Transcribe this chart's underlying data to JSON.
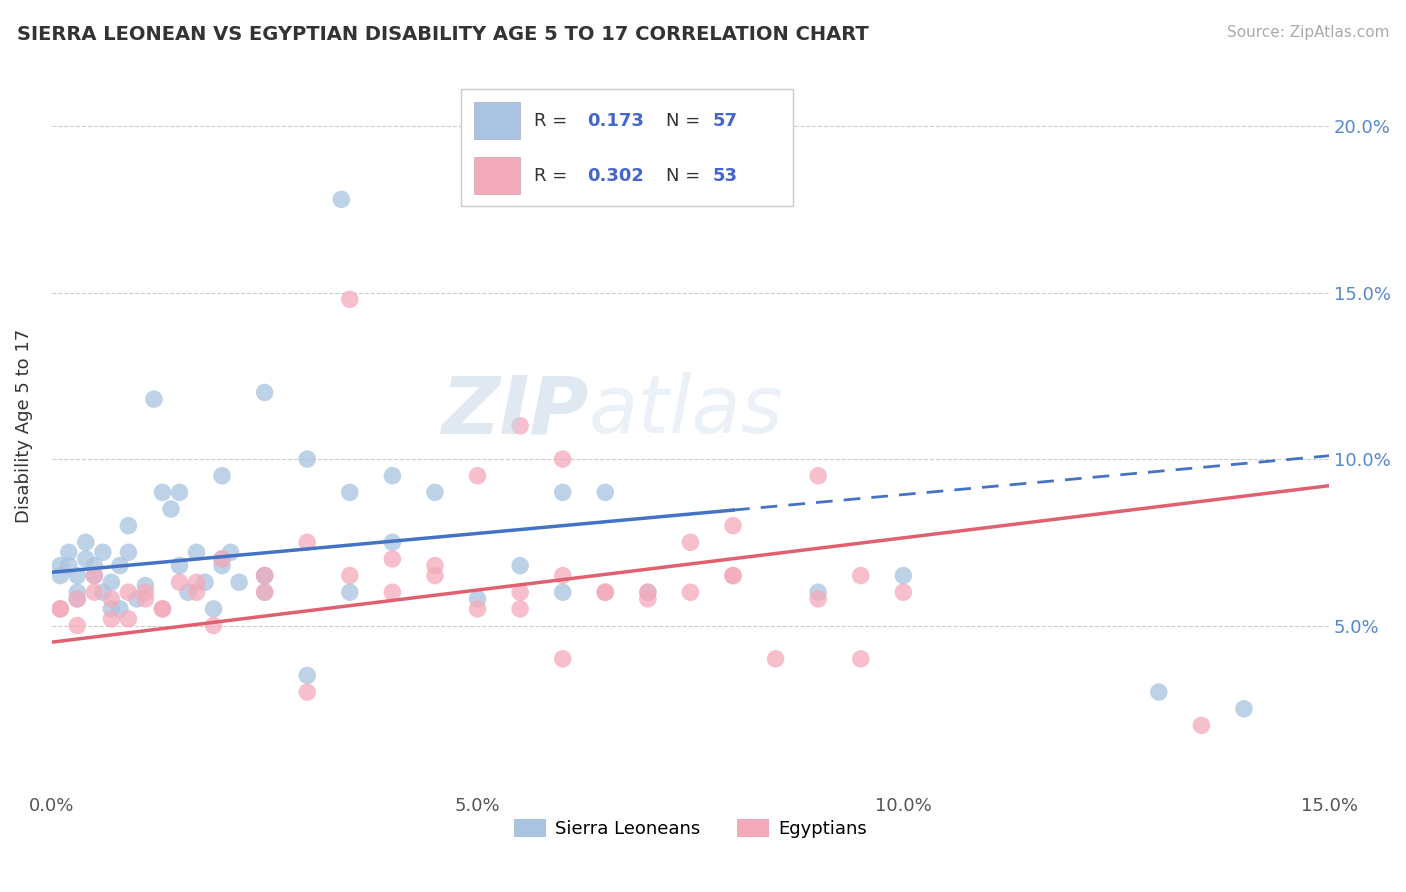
{
  "title": "SIERRA LEONEAN VS EGYPTIAN DISABILITY AGE 5 TO 17 CORRELATION CHART",
  "source": "Source: ZipAtlas.com",
  "ylabel": "Disability Age 5 to 17",
  "xlim": [
    0.0,
    0.15
  ],
  "ylim": [
    0.0,
    0.22
  ],
  "yticks": [
    0.05,
    0.1,
    0.15,
    0.2
  ],
  "ytick_labels": [
    "5.0%",
    "10.0%",
    "15.0%",
    "20.0%"
  ],
  "xticks": [
    0.0,
    0.05,
    0.1,
    0.15
  ],
  "xtick_labels": [
    "0.0%",
    "5.0%",
    "10.0%",
    "15.0%"
  ],
  "blue_color": "#A8C4E0",
  "pink_color": "#F4AABA",
  "blue_line_color": "#4472C4",
  "pink_line_color": "#E06070",
  "legend_r_blue": "0.173",
  "legend_n_blue": "57",
  "legend_r_pink": "0.302",
  "legend_n_pink": "53",
  "legend_label_blue": "Sierra Leoneans",
  "legend_label_pink": "Egyptians",
  "blue_line_solid_end": 0.08,
  "blue_line_x0": 0.0,
  "blue_line_x1": 0.15,
  "blue_line_y0": 0.066,
  "blue_line_y1": 0.101,
  "pink_line_x0": 0.0,
  "pink_line_x1": 0.15,
  "pink_line_y0": 0.045,
  "pink_line_y1": 0.092,
  "blue_scatter_x": [
    0.001,
    0.002,
    0.003,
    0.004,
    0.005,
    0.006,
    0.007,
    0.008,
    0.009,
    0.01,
    0.011,
    0.012,
    0.013,
    0.014,
    0.015,
    0.016,
    0.017,
    0.018,
    0.019,
    0.02,
    0.021,
    0.022,
    0.003,
    0.004,
    0.005,
    0.006,
    0.007,
    0.008,
    0.009,
    0.03,
    0.001,
    0.002,
    0.003,
    0.034,
    0.035,
    0.04,
    0.045,
    0.05,
    0.055,
    0.06,
    0.065,
    0.07,
    0.03,
    0.02,
    0.025,
    0.09,
    0.025,
    0.1,
    0.035,
    0.04,
    0.025,
    0.02,
    0.06,
    0.13,
    0.025,
    0.14,
    0.015
  ],
  "blue_scatter_y": [
    0.068,
    0.072,
    0.06,
    0.075,
    0.068,
    0.072,
    0.063,
    0.055,
    0.08,
    0.058,
    0.062,
    0.118,
    0.09,
    0.085,
    0.068,
    0.06,
    0.072,
    0.063,
    0.055,
    0.068,
    0.072,
    0.063,
    0.058,
    0.07,
    0.065,
    0.06,
    0.055,
    0.068,
    0.072,
    0.1,
    0.065,
    0.068,
    0.065,
    0.178,
    0.06,
    0.075,
    0.09,
    0.058,
    0.068,
    0.09,
    0.09,
    0.06,
    0.035,
    0.095,
    0.12,
    0.06,
    0.065,
    0.065,
    0.09,
    0.095,
    0.065,
    0.07,
    0.06,
    0.03,
    0.06,
    0.025,
    0.09
  ],
  "pink_scatter_x": [
    0.001,
    0.003,
    0.005,
    0.007,
    0.009,
    0.011,
    0.013,
    0.035,
    0.017,
    0.019,
    0.001,
    0.003,
    0.005,
    0.007,
    0.009,
    0.011,
    0.013,
    0.015,
    0.017,
    0.02,
    0.025,
    0.03,
    0.035,
    0.04,
    0.045,
    0.05,
    0.055,
    0.06,
    0.065,
    0.07,
    0.075,
    0.08,
    0.09,
    0.095,
    0.1,
    0.025,
    0.03,
    0.08,
    0.135,
    0.06,
    0.055,
    0.04,
    0.045,
    0.05,
    0.055,
    0.06,
    0.065,
    0.07,
    0.075,
    0.08,
    0.085,
    0.09,
    0.095
  ],
  "pink_scatter_y": [
    0.055,
    0.05,
    0.06,
    0.058,
    0.052,
    0.06,
    0.055,
    0.148,
    0.063,
    0.05,
    0.055,
    0.058,
    0.065,
    0.052,
    0.06,
    0.058,
    0.055,
    0.063,
    0.06,
    0.07,
    0.065,
    0.075,
    0.065,
    0.06,
    0.068,
    0.095,
    0.055,
    0.1,
    0.06,
    0.06,
    0.075,
    0.08,
    0.058,
    0.04,
    0.06,
    0.06,
    0.03,
    0.065,
    0.02,
    0.04,
    0.11,
    0.07,
    0.065,
    0.055,
    0.06,
    0.065,
    0.06,
    0.058,
    0.06,
    0.065,
    0.04,
    0.095,
    0.065
  ]
}
